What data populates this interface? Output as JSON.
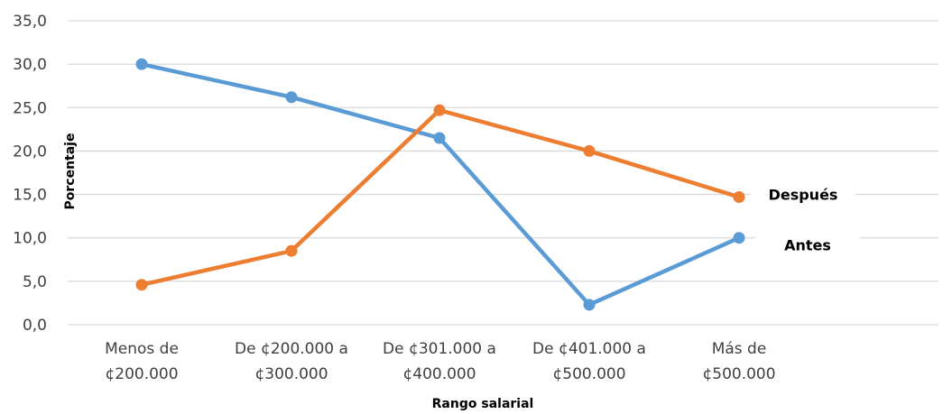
{
  "chart_data": {
    "type": "line",
    "categories": [
      [
        "Menos de",
        "¢200.000"
      ],
      [
        "De ¢200.000 a",
        "¢300.000"
      ],
      [
        "De ¢301.000 a",
        "¢400.000"
      ],
      [
        "De ¢401.000 a",
        "¢500.000"
      ],
      [
        "Más de",
        "¢500.000"
      ]
    ],
    "series": [
      {
        "name": "Antes",
        "color": "#5B9BD5",
        "values": [
          30.0,
          26.2,
          21.5,
          2.3,
          10.0
        ]
      },
      {
        "name": "Después",
        "color": "#ED7D31",
        "values": [
          4.6,
          8.5,
          24.7,
          20.0,
          14.7
        ]
      }
    ],
    "yticks": [
      "0,0",
      "5,0",
      "10,0",
      "15,0",
      "20,0",
      "25,0",
      "30,0",
      "35,0"
    ],
    "ylim": [
      0,
      35
    ],
    "xlabel": "Rango salarial",
    "ylabel": "Porcentaje",
    "grid": true,
    "legend": "inline labels at right end of lines"
  }
}
